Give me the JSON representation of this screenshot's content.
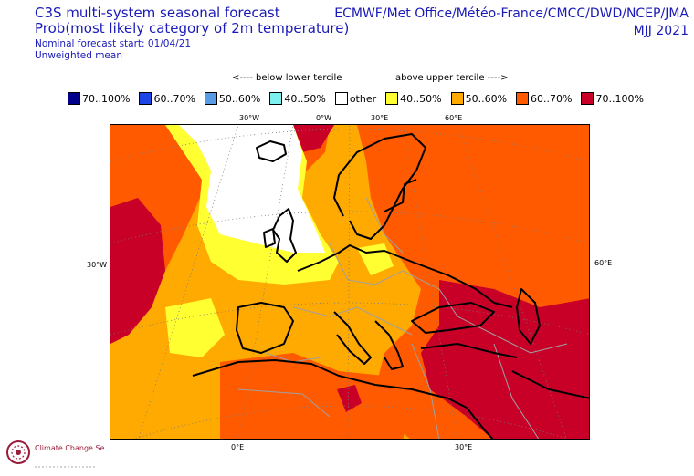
{
  "header": {
    "title": "C3S multi-system seasonal forecast",
    "subtitle": "Prob(most likely category of 2m temperature)",
    "forecast_start": "Nominal forecast start: 01/04/21",
    "mean_type": "Unweighted mean",
    "centres": "ECMWF/Met Office/Météo-France/CMCC/DWD/NCEP/JMA",
    "season": "MJJ 2021"
  },
  "legend": {
    "below_label": "<---- below lower tercile",
    "above_label": "above upper tercile ---->",
    "items": [
      {
        "label": "70..100%",
        "color": "#00008b"
      },
      {
        "label": "60..70%",
        "color": "#1e46e6"
      },
      {
        "label": "50..60%",
        "color": "#5a9be6"
      },
      {
        "label": "40..50%",
        "color": "#7df0f0"
      },
      {
        "label": "other",
        "color": "#ffffff"
      },
      {
        "label": "40..50%",
        "color": "#ffff32"
      },
      {
        "label": "50..60%",
        "color": "#ffaa00"
      },
      {
        "label": "60..70%",
        "color": "#ff5a00"
      },
      {
        "label": "70..100%",
        "color": "#c80028"
      }
    ]
  },
  "graticule_labels": {
    "top": [
      "30°W",
      "0°W",
      "30°E",
      "60°E"
    ],
    "left": "30°W",
    "right": "60°E",
    "bottom": [
      "0°E",
      "30°E"
    ]
  },
  "logo": {
    "icon": "climate-change-service-logo",
    "text": "Climate Change Service"
  },
  "colors": {
    "header_text": "#1a1ab8",
    "coast": "#000000",
    "border": "#a0a0a0"
  }
}
